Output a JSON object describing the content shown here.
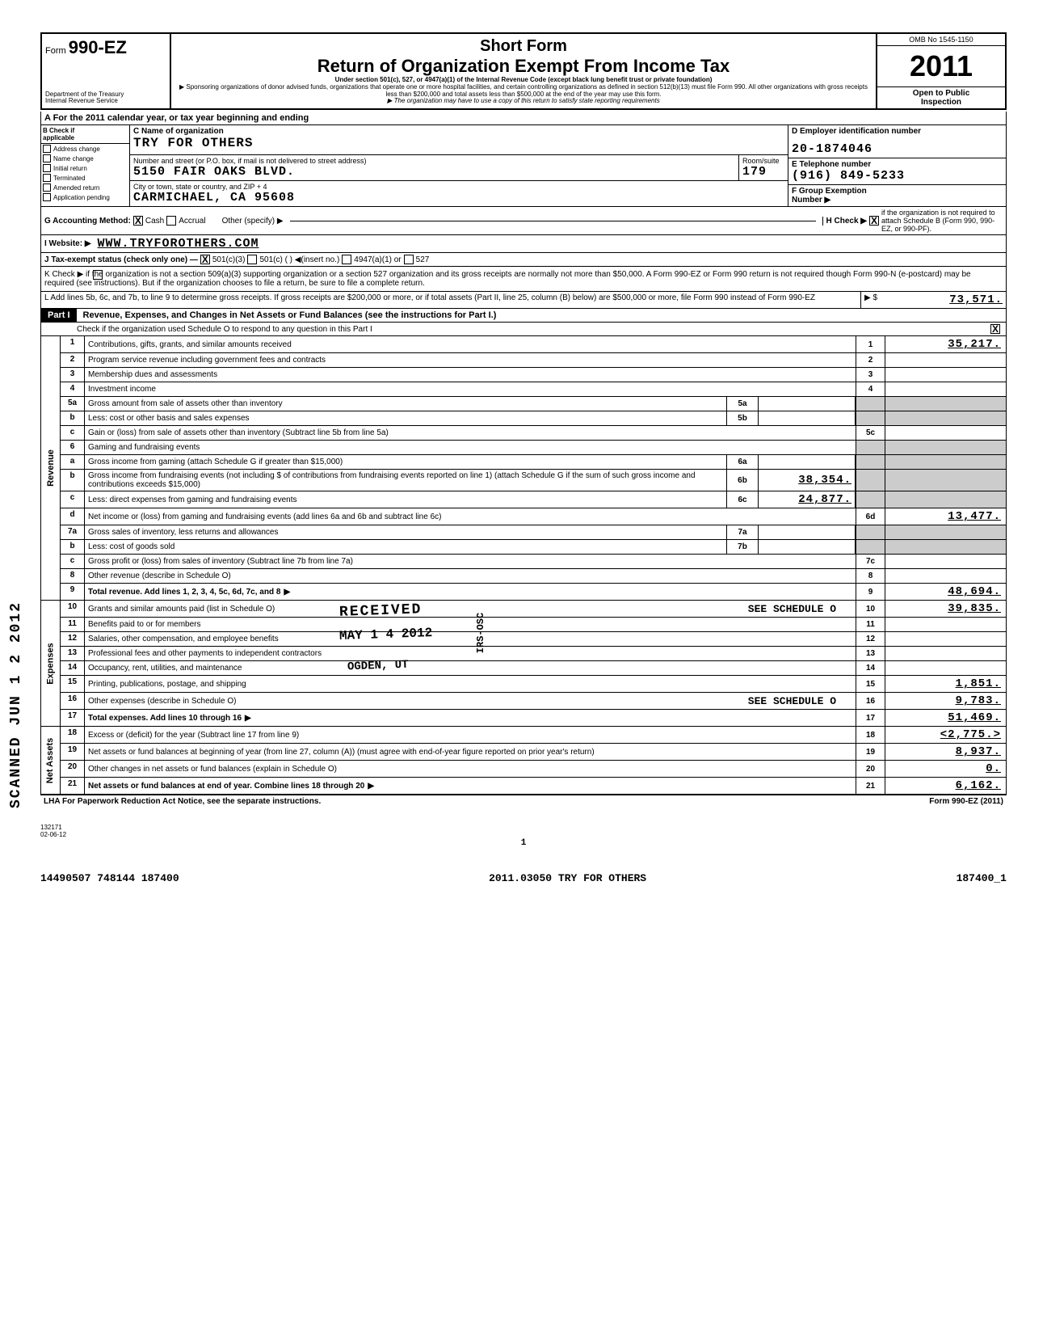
{
  "header": {
    "form_prefix": "Form",
    "form_number": "990-EZ",
    "dept": "Department of the Treasury\nInternal Revenue Service",
    "short_form": "Short Form",
    "title": "Return of Organization Exempt From Income Tax",
    "subtitle1": "Under section 501(c), 527, or 4947(a)(1) of the Internal Revenue Code\n(except black lung benefit trust or private foundation)",
    "subtitle2": "▶ Sponsoring organizations of donor advised funds, organizations that operate one or more hospital facilities, and certain controlling organizations as defined in section 512(b)(13) must file Form 990. All other organizations with gross receipts less than $200,000 and total assets less than $500,000 at the end of the year may use this form.",
    "subtitle3": "▶ The organization may have to use a copy of this return to satisfy state reporting requirements",
    "omb": "OMB No 1545-1150",
    "year": "2011",
    "open_public": "Open to Public\nInspection"
  },
  "line_a": "A   For the 2011 calendar year, or tax year beginning                                                                          and ending",
  "section_b": {
    "header": "B  Check if\n    applicable",
    "checkboxes": [
      "Address change",
      "Name change",
      "Initial return",
      "Terminated",
      "Amended return",
      "Application pending"
    ],
    "c_label": "C Name of organization",
    "org_name": "TRY FOR OTHERS",
    "street_label": "Number and street (or P.O. box, if mail is not delivered to street address)",
    "street": "5150 FAIR OAKS BLVD.",
    "room_label": "Room/suite",
    "room": "179",
    "city_label": "City or town, state or country, and ZIP + 4",
    "city": "CARMICHAEL, CA   95608",
    "d_label": "D Employer identification number",
    "ein": "20-1874046",
    "e_label": "E  Telephone number",
    "phone": "(916) 849-5233",
    "f_label": "F  Group Exemption\n    Number ▶",
    "g_label": "G  Accounting Method:",
    "g_cash": "Cash",
    "g_accrual": "Accrual",
    "g_other": "Other (specify) ▶",
    "h_label": "H Check ▶",
    "h_text": "if the organization is not required to attach Schedule B (Form 990, 990-EZ, or 990-PF).",
    "i_label": "I    Website: ▶",
    "website": "WWW.TRYFOROTHERS.COM",
    "j_label": "J   Tax-exempt status (check only one) —",
    "j_501c3": "501(c)(3)",
    "j_501c": "501(c) (          ) ◀(insert no.)",
    "j_4947": "4947(a)(1) or",
    "j_527": "527"
  },
  "line_k": "K  Check ▶         if the organization is not a section 509(a)(3) supporting organization or a section 527 organization and its gross receipts are normally not more than $50,000. A Form 990-EZ or Form 990 return is not required though Form 990-N (e-postcard) may be required (see instructions). But if the organization chooses to file a return, be sure to file a complete return.",
  "line_l": {
    "text": "L   Add lines 5b, 6c, and 7b, to line 9 to determine gross receipts. If gross receipts are $200,000 or more, or if total assets (Part II, line 25, column (B) below) are $500,000 or more, file Form 990 instead of Form 990-EZ",
    "arrow": "▶   $",
    "amount": "73,571."
  },
  "part1": {
    "label": "Part I",
    "title": "Revenue, Expenses, and Changes in Net Assets or Fund Balances (see the instructions for Part I.)",
    "sched_o_text": "Check if the organization used Schedule O to respond to any question in this Part I"
  },
  "sections": {
    "revenue": "Revenue",
    "expenses": "Expenses",
    "net_assets": "Net Assets"
  },
  "rows": [
    {
      "n": "1",
      "desc": "Contributions, gifts, grants, and similar amounts received",
      "col": "1",
      "val": "35,217."
    },
    {
      "n": "2",
      "desc": "Program service revenue including government fees and contracts",
      "col": "2",
      "val": ""
    },
    {
      "n": "3",
      "desc": "Membership dues and assessments",
      "col": "3",
      "val": ""
    },
    {
      "n": "4",
      "desc": "Investment income",
      "col": "4",
      "val": ""
    },
    {
      "n": "5a",
      "desc": "Gross amount from sale of assets other than inventory",
      "mid_n": "5a",
      "mid_v": "",
      "shaded": true
    },
    {
      "n": "b",
      "desc": "Less: cost or other basis and sales expenses",
      "mid_n": "5b",
      "mid_v": "",
      "shaded": true
    },
    {
      "n": "c",
      "desc": "Gain or (loss) from sale of assets other than inventory (Subtract line 5b from line 5a)",
      "col": "5c",
      "val": ""
    },
    {
      "n": "6",
      "desc": "Gaming and fundraising events",
      "shaded_full": true
    },
    {
      "n": "a",
      "desc": "Gross income from gaming (attach Schedule G if greater than $15,000)",
      "mid_n": "6a",
      "mid_v": "",
      "shaded": true
    },
    {
      "n": "b",
      "desc": "Gross income from fundraising events (not including $                              of contributions from fundraising events reported on line 1) (attach Schedule G if the sum of such gross income and contributions exceeds $15,000)",
      "mid_n": "6b",
      "mid_v": "38,354.",
      "shaded": true
    },
    {
      "n": "c",
      "desc": "Less: direct expenses from gaming and fundraising events",
      "mid_n": "6c",
      "mid_v": "24,877.",
      "shaded": true
    },
    {
      "n": "d",
      "desc": "Net income or (loss) from gaming and fundraising events (add lines 6a and 6b and subtract line 6c)",
      "col": "6d",
      "val": "13,477."
    },
    {
      "n": "7a",
      "desc": "Gross sales of inventory, less returns and allowances",
      "mid_n": "7a",
      "mid_v": "",
      "shaded": true
    },
    {
      "n": "b",
      "desc": "Less: cost of goods sold",
      "mid_n": "7b",
      "mid_v": "",
      "shaded": true
    },
    {
      "n": "c",
      "desc": "Gross profit or (loss) from sales of inventory (Subtract line 7b from line 7a)",
      "col": "7c",
      "val": ""
    },
    {
      "n": "8",
      "desc": "Other revenue (describe in Schedule O)",
      "col": "8",
      "val": ""
    },
    {
      "n": "9",
      "desc": "Total revenue. Add lines 1, 2, 3, 4, 5c, 6d, 7c, and 8",
      "col": "9",
      "val": "48,694.",
      "bold": true,
      "arrow": true
    }
  ],
  "expense_rows": [
    {
      "n": "10",
      "desc": "Grants and similar amounts paid (list in Schedule O)",
      "extra": "SEE SCHEDULE O",
      "col": "10",
      "val": "39,835."
    },
    {
      "n": "11",
      "desc": "Benefits paid to or for members",
      "col": "11",
      "val": ""
    },
    {
      "n": "12",
      "desc": "Salaries, other compensation, and employee benefits",
      "col": "12",
      "val": ""
    },
    {
      "n": "13",
      "desc": "Professional fees and other payments to independent contractors",
      "col": "13",
      "val": ""
    },
    {
      "n": "14",
      "desc": "Occupancy, rent, utilities, and maintenance",
      "col": "14",
      "val": ""
    },
    {
      "n": "15",
      "desc": "Printing, publications, postage, and shipping",
      "col": "15",
      "val": "1,851."
    },
    {
      "n": "16",
      "desc": "Other expenses (describe in Schedule O)",
      "extra": "SEE SCHEDULE O",
      "col": "16",
      "val": "9,783."
    },
    {
      "n": "17",
      "desc": "Total expenses. Add lines 10 through 16",
      "col": "17",
      "val": "51,469.",
      "bold": true,
      "arrow": true
    }
  ],
  "netasset_rows": [
    {
      "n": "18",
      "desc": "Excess or (deficit) for the year (Subtract line 17 from line 9)",
      "col": "18",
      "val": "<2,775.>"
    },
    {
      "n": "19",
      "desc": "Net assets or fund balances at beginning of year (from line 27, column (A)) (must agree with end-of-year figure reported on prior year's return)",
      "col": "19",
      "val": "8,937."
    },
    {
      "n": "20",
      "desc": "Other changes in net assets or fund balances (explain in Schedule O)",
      "col": "20",
      "val": "0."
    },
    {
      "n": "21",
      "desc": "Net assets or fund balances at end of year. Combine lines 18 through 20",
      "col": "21",
      "val": "6,162.",
      "bold": true,
      "arrow": true
    }
  ],
  "footer": {
    "left": "LHA   For Paperwork Reduction Act Notice, see the separate instructions.",
    "right": "Form 990-EZ (2011)"
  },
  "stamps": {
    "received": "RECEIVED",
    "date": "MAY 1 4 2012",
    "ogden": "OGDEN, UT",
    "irs": "IRS-OSC",
    "scanned": "SCANNED  JUN 1 2 2012"
  },
  "bottom": {
    "small_code": "132171\n02-06-12",
    "page": "1",
    "left_code": "14490507 748144 187400",
    "center_code": "2011.03050 TRY FOR OTHERS",
    "right_code": "187400_1"
  }
}
